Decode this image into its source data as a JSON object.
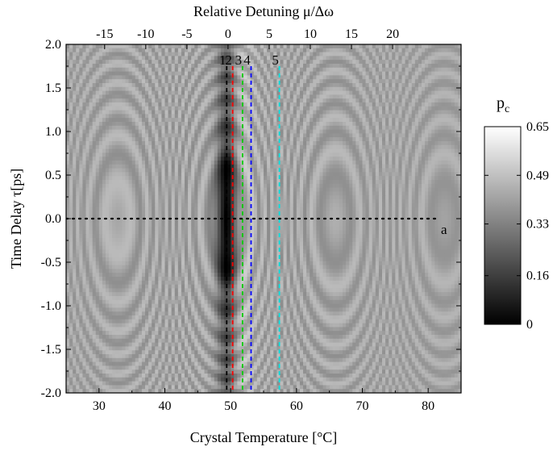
{
  "chart_data": {
    "type": "heatmap",
    "title": "",
    "xlabel": "Crystal Temperature [°C]",
    "top_xlabel": "Relative Detuning μ/Δω",
    "ylabel": "Time Delay τ[ps]",
    "colorbar_label": "p",
    "colorbar_label_sub": "c",
    "xlim": [
      25,
      85
    ],
    "ylim": [
      -2.0,
      2.0
    ],
    "x_ticks": [
      30,
      40,
      50,
      60,
      70,
      80
    ],
    "x_tick_labels": [
      "30",
      "40",
      "50",
      "60",
      "70",
      "80"
    ],
    "y_ticks": [
      2.0,
      1.5,
      1.0,
      0.5,
      0.0,
      -0.5,
      -1.0,
      -1.5,
      -2.0
    ],
    "y_tick_labels": [
      "2.0",
      "1.5",
      "1.0",
      "0.5",
      "0.0",
      "-0.5",
      "-1.0",
      "-1.5",
      "-2.0"
    ],
    "top_ticks_detuning": [
      -15,
      -10,
      -5,
      0,
      5,
      10,
      15,
      20
    ],
    "top_tick_labels": [
      "-15",
      "-10",
      "-5",
      "0",
      "5",
      "10",
      "15",
      "20"
    ],
    "detuning_zero_temperature": 49.6,
    "detuning_per_degree": 0.8,
    "colorbar": {
      "range": [
        0,
        0.65
      ],
      "ticks": [
        0.65,
        0.49,
        0.33,
        0.16,
        0
      ],
      "tick_labels": [
        "0.65",
        "0.49",
        "0.33",
        "0.16",
        "0"
      ]
    },
    "markers": [
      {
        "label": "1",
        "x": 49.4,
        "color": "#000000"
      },
      {
        "label": "2",
        "x": 50.3,
        "color": "#ff0000"
      },
      {
        "label": "3",
        "x": 51.8,
        "color": "#00cc00"
      },
      {
        "label": "4",
        "x": 53.1,
        "color": "#0000ff"
      },
      {
        "label": "5",
        "x": 57.4,
        "color": "#00e0e0"
      }
    ],
    "horizontal_line": {
      "label": "a",
      "y": 0.0,
      "color": "#000000"
    },
    "grid": false
  }
}
